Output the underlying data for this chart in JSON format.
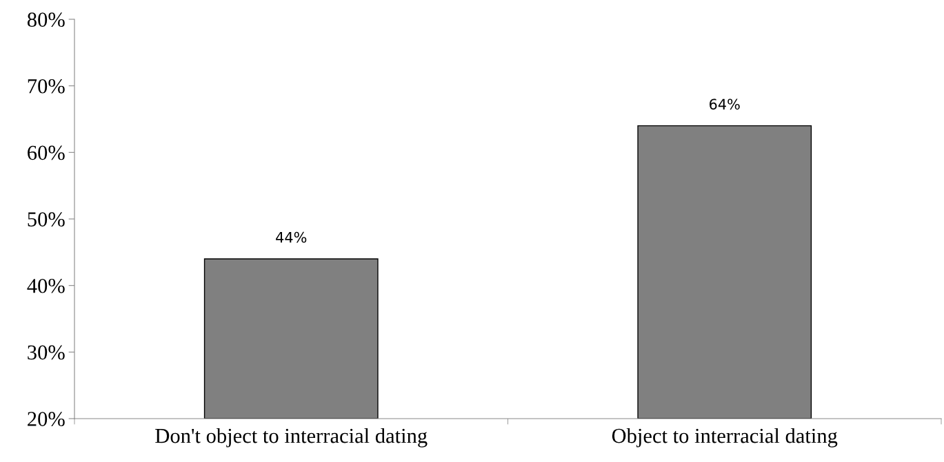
{
  "chart_data": {
    "type": "bar",
    "categories": [
      "Don't object to interracial dating",
      "Object to interracial dating"
    ],
    "values": [
      44,
      64
    ],
    "color": "#808080",
    "value_labels": [
      "44%",
      "64%"
    ],
    "ylim": [
      20,
      80
    ],
    "yticks": [
      {
        "value": 20,
        "label": "20%"
      },
      {
        "value": 30,
        "label": "30%"
      },
      {
        "value": 40,
        "label": "40%"
      },
      {
        "value": 50,
        "label": "50%"
      },
      {
        "value": 60,
        "label": "60%"
      },
      {
        "value": 70,
        "label": "70%"
      },
      {
        "value": 80,
        "label": "80%"
      }
    ],
    "grid": false,
    "legend": false
  }
}
